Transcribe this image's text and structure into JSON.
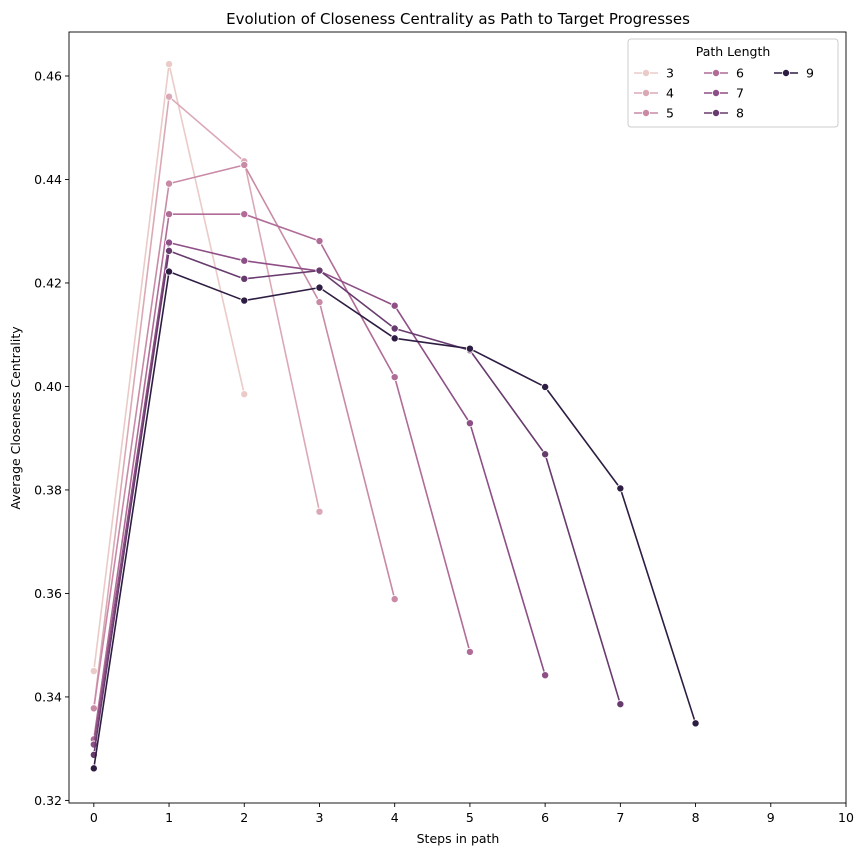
{
  "chart_data": {
    "type": "line",
    "title": "Evolution of Closeness Centrality as Path to Target Progresses",
    "xlabel": "Steps in path",
    "ylabel": "Average Closeness Centrality",
    "xlim": [
      -0.33,
      10
    ],
    "ylim": [
      0.3195,
      0.4685
    ],
    "xticks": [
      0,
      1,
      2,
      3,
      4,
      5,
      6,
      7,
      8,
      9,
      10
    ],
    "yticks": [
      0.32,
      0.34,
      0.36,
      0.38,
      0.4,
      0.42,
      0.44,
      0.46
    ],
    "ytick_labels": [
      "0.32",
      "0.34",
      "0.36",
      "0.38",
      "0.40",
      "0.42",
      "0.44",
      "0.46"
    ],
    "grid": false,
    "legend": {
      "title": "Path Length",
      "placement": "top-right",
      "columns": 3
    },
    "series": [
      {
        "name": "3",
        "color": "#eacbc7",
        "x": [
          0,
          1,
          2
        ],
        "y": [
          0.345,
          0.4623,
          0.3985
        ]
      },
      {
        "name": "4",
        "color": "#dba9b6",
        "x": [
          0,
          1,
          2,
          3
        ],
        "y": [
          0.3378,
          0.456,
          0.4435,
          0.3758
        ]
      },
      {
        "name": "5",
        "color": "#c98aa6",
        "x": [
          0,
          1,
          2,
          3,
          4
        ],
        "y": [
          0.3378,
          0.4392,
          0.4428,
          0.4163,
          0.3589
        ]
      },
      {
        "name": "6",
        "color": "#b06c97",
        "x": [
          0,
          1,
          2,
          3,
          4,
          5
        ],
        "y": [
          0.3318,
          0.4333,
          0.4333,
          0.4281,
          0.4018,
          0.3487
        ]
      },
      {
        "name": "7",
        "color": "#8e4f86",
        "x": [
          0,
          1,
          2,
          3,
          4,
          5,
          6
        ],
        "y": [
          0.3308,
          0.4278,
          0.4243,
          0.4223,
          0.4156,
          0.3929,
          0.3442
        ]
      },
      {
        "name": "8",
        "color": "#683b6e",
        "x": [
          0,
          1,
          2,
          3,
          4,
          5,
          6,
          7
        ],
        "y": [
          0.3288,
          0.4262,
          0.4208,
          0.4224,
          0.4112,
          0.407,
          0.3869,
          0.3386
        ]
      },
      {
        "name": "9",
        "color": "#2e1d43",
        "x": [
          0,
          1,
          2,
          3,
          4,
          5,
          6,
          7,
          8
        ],
        "y": [
          0.3262,
          0.4222,
          0.4166,
          0.4191,
          0.4093,
          0.4073,
          0.3999,
          0.3803,
          0.3349
        ]
      }
    ]
  }
}
